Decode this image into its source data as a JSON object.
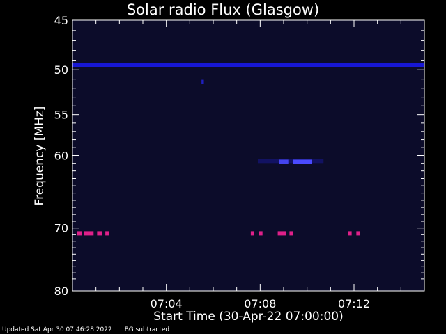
{
  "chart_data": {
    "type": "heatmap",
    "title": "Solar radio Flux (Glasgow)",
    "xlabel": "Start Time (30-Apr-22 07:00:00)",
    "ylabel": "Frequency [MHz]",
    "x_unit": "minutes after 07:00:00",
    "xlim": [
      0,
      15
    ],
    "ylim": [
      45,
      80
    ],
    "y_log_scale": true,
    "y_inverted": true,
    "xticks": [
      {
        "value": 4,
        "label": "07:04"
      },
      {
        "value": 8,
        "label": "07:08"
      },
      {
        "value": 12,
        "label": "07:12"
      }
    ],
    "yticks": [
      {
        "value": 45,
        "label": "45"
      },
      {
        "value": 50,
        "label": "50"
      },
      {
        "value": 55,
        "label": "55"
      },
      {
        "value": 60,
        "label": "60"
      },
      {
        "value": 70,
        "label": "70"
      },
      {
        "value": 80,
        "label": "80"
      }
    ],
    "background_color": "#0c0c2a",
    "features": [
      {
        "kind": "band",
        "freq": 49.5,
        "x_start": 0,
        "x_end": 15,
        "color": "#1a1aff",
        "level": 0.8
      },
      {
        "kind": "spot",
        "freq": 51.3,
        "x": 5.55,
        "color": "#2a2aff",
        "level": 0.7
      },
      {
        "kind": "band",
        "freq": 60.7,
        "x_start": 7.9,
        "x_end": 10.7,
        "color": "#2020cc",
        "level": 0.35
      },
      {
        "kind": "spot",
        "freq": 60.8,
        "x_start": 8.8,
        "x_end": 9.2,
        "color": "#4a4aff",
        "level": 0.9
      },
      {
        "kind": "spot",
        "freq": 60.8,
        "x_start": 9.4,
        "x_end": 10.2,
        "color": "#4a4aff",
        "level": 1.0
      },
      {
        "kind": "spot",
        "freq": 70.8,
        "x_start": 0.2,
        "x_end": 0.4,
        "color": "#e0208a",
        "level": 1.0
      },
      {
        "kind": "spot",
        "freq": 70.8,
        "x_start": 0.5,
        "x_end": 0.9,
        "color": "#e0208a",
        "level": 1.0
      },
      {
        "kind": "spot",
        "freq": 70.8,
        "x_start": 1.05,
        "x_end": 1.25,
        "color": "#e0208a",
        "level": 1.0
      },
      {
        "kind": "spot",
        "freq": 70.8,
        "x_start": 1.4,
        "x_end": 1.55,
        "color": "#e0208a",
        "level": 1.0
      },
      {
        "kind": "spot",
        "freq": 70.8,
        "x_start": 7.6,
        "x_end": 7.75,
        "color": "#e0208a",
        "level": 1.0
      },
      {
        "kind": "spot",
        "freq": 70.8,
        "x_start": 7.95,
        "x_end": 8.1,
        "color": "#e0208a",
        "level": 1.0
      },
      {
        "kind": "spot",
        "freq": 70.8,
        "x_start": 8.75,
        "x_end": 9.1,
        "color": "#e0208a",
        "level": 1.0
      },
      {
        "kind": "spot",
        "freq": 70.8,
        "x_start": 9.25,
        "x_end": 9.4,
        "color": "#e0208a",
        "level": 1.0
      },
      {
        "kind": "spot",
        "freq": 70.8,
        "x_start": 11.75,
        "x_end": 11.9,
        "color": "#e0208a",
        "level": 1.0
      },
      {
        "kind": "spot",
        "freq": 70.8,
        "x_start": 12.1,
        "x_end": 12.25,
        "color": "#e0208a",
        "level": 1.0
      }
    ]
  },
  "footer": {
    "updated": "Updated Sat Apr 30 07:46:28 2022",
    "note": "BG subtracted"
  },
  "colors": {
    "axis": "#ffffff",
    "text": "#ffffff",
    "page_background": "#000000"
  }
}
